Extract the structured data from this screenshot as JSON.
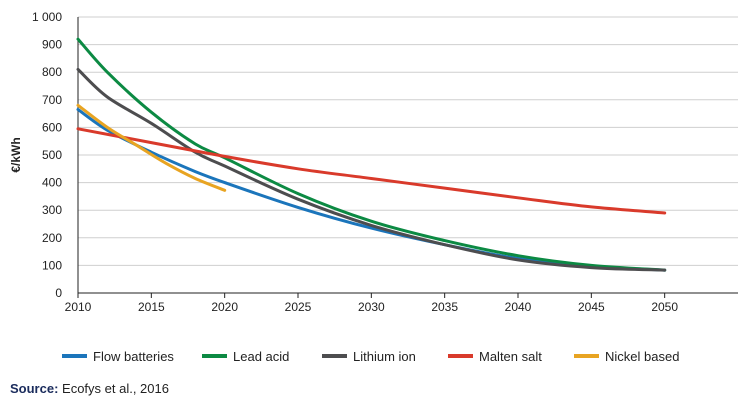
{
  "chart_data": {
    "type": "line",
    "title": "",
    "xlabel": "",
    "ylabel": "€/kWh",
    "xlim": [
      2010,
      2055
    ],
    "ylim": [
      0,
      1000
    ],
    "x_ticks": [
      2010,
      2015,
      2020,
      2025,
      2030,
      2035,
      2040,
      2045,
      2050
    ],
    "x_tick_labels": [
      "2010",
      "2015",
      "2020",
      "2025",
      "2030",
      "2035",
      "2040",
      "2045",
      "2050"
    ],
    "y_ticks": [
      0,
      100,
      200,
      300,
      400,
      500,
      600,
      700,
      800,
      900,
      1000
    ],
    "y_tick_labels": [
      "0",
      "100",
      "200",
      "300",
      "400",
      "500",
      "600",
      "700",
      "800",
      "900",
      "1 000"
    ],
    "grid": true,
    "legend_position": "bottom",
    "series": [
      {
        "name": "Flow batteries",
        "color": "#1b75bb",
        "x": [
          2010,
          2012,
          2015,
          2018,
          2020,
          2025,
          2030,
          2035,
          2040,
          2045,
          2050
        ],
        "values": [
          665,
          590,
          510,
          440,
          400,
          310,
          235,
          175,
          125,
          97,
          83
        ]
      },
      {
        "name": "Lead acid",
        "color": "#0c8a43",
        "x": [
          2010,
          2012,
          2015,
          2018,
          2020,
          2025,
          2030,
          2035,
          2040,
          2045,
          2050
        ],
        "values": [
          920,
          800,
          655,
          540,
          490,
          360,
          260,
          190,
          135,
          100,
          83
        ]
      },
      {
        "name": "Lithium ion",
        "color": "#4d4d4f",
        "x": [
          2010,
          2012,
          2015,
          2018,
          2020,
          2025,
          2030,
          2035,
          2040,
          2045,
          2050
        ],
        "values": [
          810,
          710,
          615,
          510,
          460,
          340,
          245,
          175,
          120,
          92,
          83
        ]
      },
      {
        "name": "Malten salt",
        "color": "#d93a2b",
        "x": [
          2010,
          2015,
          2020,
          2025,
          2030,
          2035,
          2040,
          2045,
          2050
        ],
        "values": [
          595,
          545,
          495,
          450,
          415,
          380,
          345,
          312,
          290
        ]
      },
      {
        "name": "Nickel based",
        "color": "#e8a422",
        "x": [
          2010,
          2012,
          2014,
          2016,
          2018,
          2020
        ],
        "values": [
          680,
          600,
          535,
          470,
          415,
          372
        ]
      }
    ]
  },
  "source": {
    "label": "Source:",
    "text": " Ecofys et al., 2016"
  }
}
